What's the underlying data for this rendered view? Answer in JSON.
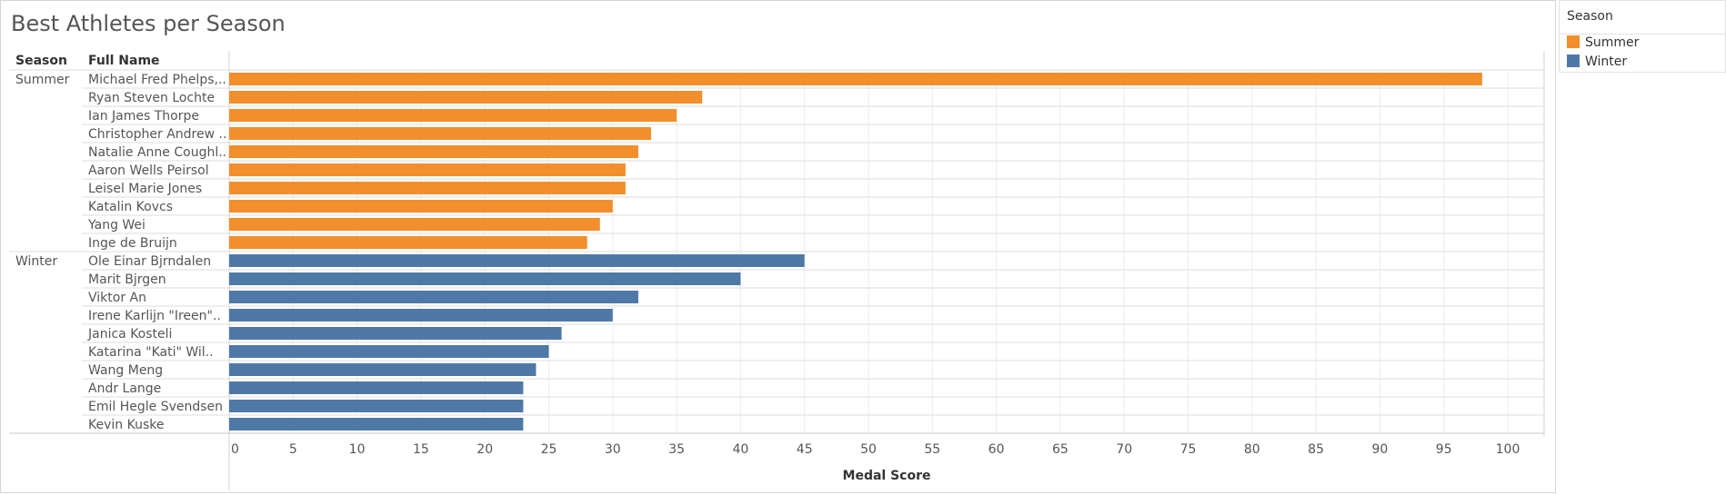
{
  "title": "Best Athletes per Season",
  "legend": {
    "title": "Season",
    "items": [
      {
        "label": "Summer",
        "color": "#f28e2b"
      },
      {
        "label": "Winter",
        "color": "#4e79a7"
      }
    ]
  },
  "chart_data": {
    "type": "bar",
    "orientation": "horizontal",
    "row_headers": [
      "Season",
      "Full Name"
    ],
    "xlabel": "Medal Score",
    "xlim": [
      0,
      100
    ],
    "xticks": [
      0,
      5,
      10,
      15,
      20,
      25,
      30,
      35,
      40,
      45,
      50,
      55,
      60,
      65,
      70,
      75,
      80,
      85,
      90,
      95,
      100
    ],
    "grid": true,
    "groups": [
      {
        "season": "Summer",
        "color": "#f28e2b",
        "athletes": [
          {
            "name": "Michael Fred Phelps,..",
            "value": 98
          },
          {
            "name": "Ryan Steven Lochte",
            "value": 37
          },
          {
            "name": "Ian James Thorpe",
            "value": 35
          },
          {
            "name": "Christopher Andrew ..",
            "value": 33
          },
          {
            "name": "Natalie Anne Coughl..",
            "value": 32
          },
          {
            "name": "Aaron Wells Peirsol",
            "value": 31
          },
          {
            "name": "Leisel Marie Jones",
            "value": 31
          },
          {
            "name": "Katalin Kovcs",
            "value": 30
          },
          {
            "name": "Yang Wei",
            "value": 29
          },
          {
            "name": "Inge de Bruijn",
            "value": 28
          }
        ]
      },
      {
        "season": "Winter",
        "color": "#4e79a7",
        "athletes": [
          {
            "name": "Ole Einar Bjrndalen",
            "value": 45
          },
          {
            "name": "Marit Bjrgen",
            "value": 40
          },
          {
            "name": "Viktor An",
            "value": 32
          },
          {
            "name": "Irene Karlijn \"Ireen\"..",
            "value": 30
          },
          {
            "name": "Janica Kosteli",
            "value": 26
          },
          {
            "name": "Katarina \"Kati\" Wil..",
            "value": 25
          },
          {
            "name": "Wang Meng",
            "value": 24
          },
          {
            "name": "Andr Lange",
            "value": 23
          },
          {
            "name": "Emil Hegle Svendsen",
            "value": 23
          },
          {
            "name": "Kevin Kuske",
            "value": 23
          }
        ]
      }
    ]
  }
}
